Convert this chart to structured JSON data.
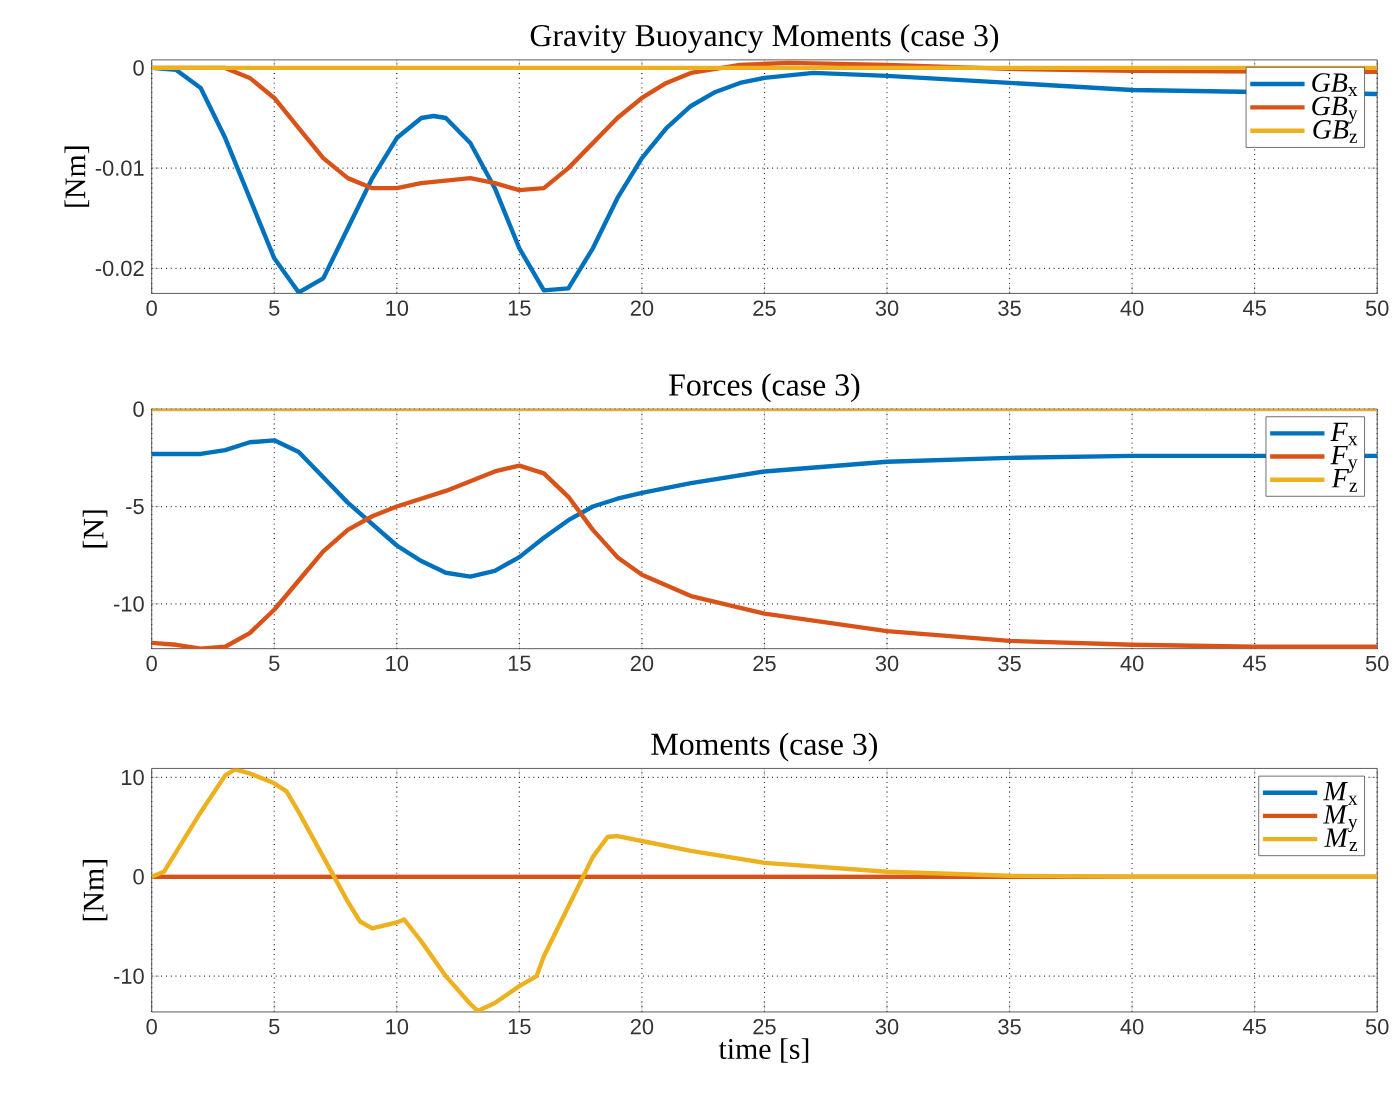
{
  "chart_data": [
    {
      "type": "line",
      "title": "Gravity Buoyancy Moments (case 3)",
      "ylabel": "[Nm]",
      "xlim": [
        0,
        50
      ],
      "ylim": [
        -0.0225,
        0.0008
      ],
      "xticks": [
        0,
        5,
        10,
        15,
        20,
        25,
        30,
        35,
        40,
        45,
        50
      ],
      "yticks": [
        -0.02,
        -0.01,
        0
      ],
      "grid": true,
      "legend": "top right",
      "series": [
        {
          "name": "*GB*$_{x}$",
          "color": "#0072bd",
          "x": [
            0,
            1,
            2,
            3,
            4,
            5,
            6,
            7,
            8,
            9,
            10,
            11,
            11.5,
            12,
            13,
            14,
            15,
            16,
            17,
            18,
            19,
            20,
            21,
            22,
            23,
            24,
            25,
            27,
            30,
            35,
            40,
            45,
            50
          ],
          "values": [
            0,
            -0.0002,
            -0.002,
            -0.007,
            -0.013,
            -0.019,
            -0.0224,
            -0.021,
            -0.016,
            -0.011,
            -0.007,
            -0.005,
            -0.0048,
            -0.005,
            -0.0075,
            -0.012,
            -0.018,
            -0.0222,
            -0.022,
            -0.018,
            -0.013,
            -0.009,
            -0.006,
            -0.0038,
            -0.0024,
            -0.0015,
            -0.001,
            -0.0005,
            -0.0008,
            -0.0015,
            -0.0022,
            null,
            -0.0026
          ]
        },
        {
          "name": "*GB*$_{y}$",
          "color": "#d95319",
          "x": [
            0,
            3,
            4,
            5,
            6,
            7,
            8,
            9,
            10,
            11,
            13,
            14,
            15,
            16,
            17,
            18,
            19,
            20,
            21,
            22,
            24,
            26,
            30,
            35,
            40,
            50
          ],
          "values": [
            0,
            0,
            -0.001,
            -0.003,
            -0.006,
            -0.009,
            -0.011,
            -0.012,
            -0.012,
            -0.0115,
            -0.011,
            -0.0115,
            -0.0122,
            -0.012,
            -0.01,
            -0.0075,
            -0.005,
            -0.003,
            -0.0015,
            -0.0005,
            0.0003,
            0.0005,
            0.0003,
            -0.0001,
            -0.0003,
            -0.0004
          ]
        },
        {
          "name": "*GB*$_{z}$",
          "color": "#edb120",
          "x": [
            0,
            50
          ],
          "values": [
            0,
            0
          ]
        }
      ]
    },
    {
      "type": "line",
      "title": "Forces (case 3)",
      "ylabel": "[N]",
      "xlim": [
        0,
        50
      ],
      "ylim": [
        -12.3,
        0
      ],
      "xticks": [
        0,
        5,
        10,
        15,
        20,
        25,
        30,
        35,
        40,
        45,
        50
      ],
      "yticks": [
        -10,
        -5,
        0
      ],
      "grid": true,
      "legend": "top right",
      "series": [
        {
          "name": "*F*$_{x}$",
          "color": "#0072bd",
          "x": [
            0,
            2,
            3,
            4,
            5,
            6,
            7,
            8,
            9,
            10,
            11,
            12,
            13,
            14,
            15,
            16,
            17,
            18,
            19,
            20,
            22,
            25,
            30,
            35,
            40,
            45,
            50
          ],
          "values": [
            -2.3,
            -2.3,
            -2.1,
            -1.7,
            -1.6,
            -2.2,
            -3.5,
            -4.8,
            -5.9,
            -7,
            -7.8,
            -8.4,
            -8.6,
            -8.3,
            -7.6,
            -6.6,
            -5.7,
            -5,
            -4.6,
            -4.3,
            -3.8,
            -3.2,
            -2.7,
            -2.5,
            -2.4,
            -2.4,
            -2.4
          ]
        },
        {
          "name": "*F*$_{y}$",
          "color": "#d95319",
          "x": [
            0,
            1,
            2,
            3,
            4,
            5,
            6,
            7,
            8,
            9,
            10,
            11,
            12,
            13,
            14,
            15,
            16,
            17,
            18,
            19,
            20,
            22,
            25,
            30,
            35,
            40,
            45,
            50
          ],
          "values": [
            -12,
            -12.1,
            -12.3,
            -12.2,
            -11.5,
            -10.3,
            -8.8,
            -7.3,
            -6.2,
            -5.5,
            -5,
            -4.6,
            -4.2,
            -3.7,
            -3.2,
            -2.9,
            -3.3,
            -4.5,
            -6.2,
            -7.6,
            -8.5,
            -9.6,
            -10.5,
            -11.4,
            -11.9,
            -12.1,
            -12.2,
            -12.2
          ]
        },
        {
          "name": "*F*$_{z}$",
          "color": "#edb120",
          "x": [
            0,
            50
          ],
          "values": [
            0,
            0
          ]
        }
      ]
    },
    {
      "type": "line",
      "title": "Moments (case 3)",
      "xlabel": "time [s]",
      "ylabel": "[Nm]",
      "xlim": [
        0,
        50
      ],
      "ylim": [
        -13.6,
        10.9
      ],
      "xticks": [
        0,
        5,
        10,
        15,
        20,
        25,
        30,
        35,
        40,
        45,
        50
      ],
      "yticks": [
        -10,
        0,
        10
      ],
      "grid": true,
      "legend": "top right",
      "series": [
        {
          "name": "*M*$_{x}$",
          "color": "#0072bd"
        },
        {
          "name": "*M*$_{y}$",
          "color": "#d95319",
          "x": [
            0,
            50
          ],
          "values": [
            0,
            0
          ]
        },
        {
          "name": "*M*$_{z}$",
          "color": "#edb120",
          "x": [
            0,
            0.5,
            1,
            2,
            3,
            3.4,
            4,
            5,
            5.5,
            6,
            7,
            8,
            8.5,
            9,
            10,
            10.3,
            11,
            12,
            13,
            13.3,
            14,
            15,
            15.7,
            16,
            17,
            18,
            18.6,
            19,
            20,
            22,
            25,
            30,
            35,
            40,
            50
          ],
          "values": [
            0,
            0.5,
            2.5,
            6.5,
            10.2,
            10.8,
            10.4,
            9.4,
            8.6,
            6.5,
            2,
            -2.5,
            -4.5,
            -5.2,
            -4.6,
            -4.3,
            -6.5,
            -10,
            -12.8,
            -13.5,
            -12.7,
            -11,
            -10,
            -8,
            -3,
            2,
            4,
            4.1,
            3.6,
            2.6,
            1.4,
            0.5,
            0.1,
            0,
            0
          ]
        }
      ]
    }
  ]
}
